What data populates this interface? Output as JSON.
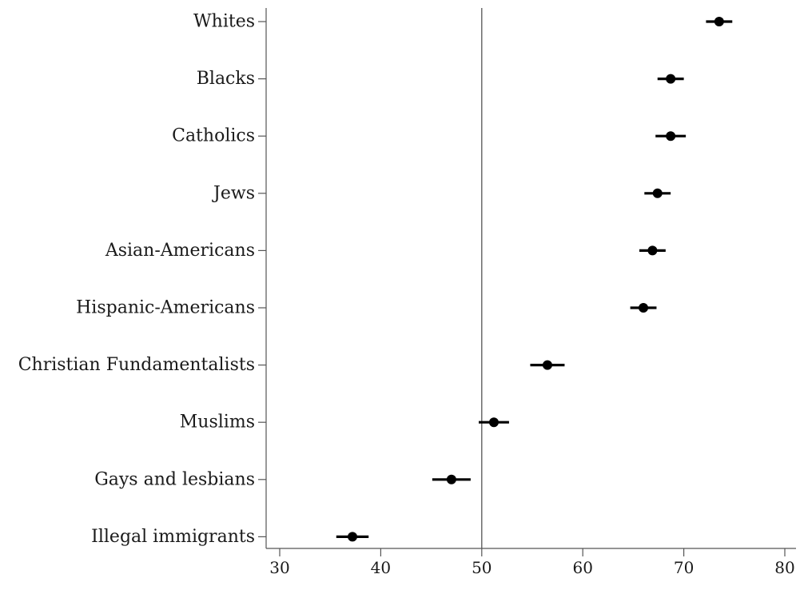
{
  "chart_data": {
    "type": "scatter",
    "orientation": "horizontal-dot-plot-with-error-bars",
    "title": "",
    "xlabel": "",
    "ylabel": "",
    "xlim": [
      30,
      80
    ],
    "x_ticks": [
      30,
      40,
      50,
      60,
      70,
      80
    ],
    "reference_line_x": 50,
    "grid": false,
    "legend": "none",
    "categories": [
      "Whites",
      "Blacks",
      "Catholics",
      "Jews",
      "Asian-Americans",
      "Hispanic-Americans",
      "Christian Fundamentalists",
      "Muslims",
      "Gays and lesbians",
      "Illegal immigrants"
    ],
    "series": [
      {
        "values": [
          73.5,
          68.7,
          68.7,
          67.4,
          66.9,
          66.0,
          56.5,
          51.2,
          47.0,
          37.2
        ],
        "ci_low": [
          72.2,
          67.4,
          67.2,
          66.1,
          65.6,
          64.7,
          54.8,
          49.7,
          45.1,
          35.6
        ],
        "ci_high": [
          74.8,
          70.0,
          70.2,
          68.7,
          68.2,
          67.3,
          58.2,
          52.7,
          48.9,
          38.8
        ]
      }
    ],
    "colors": {
      "marker": "#000000",
      "axis": "#555555",
      "text": "#1a1a1a"
    }
  }
}
